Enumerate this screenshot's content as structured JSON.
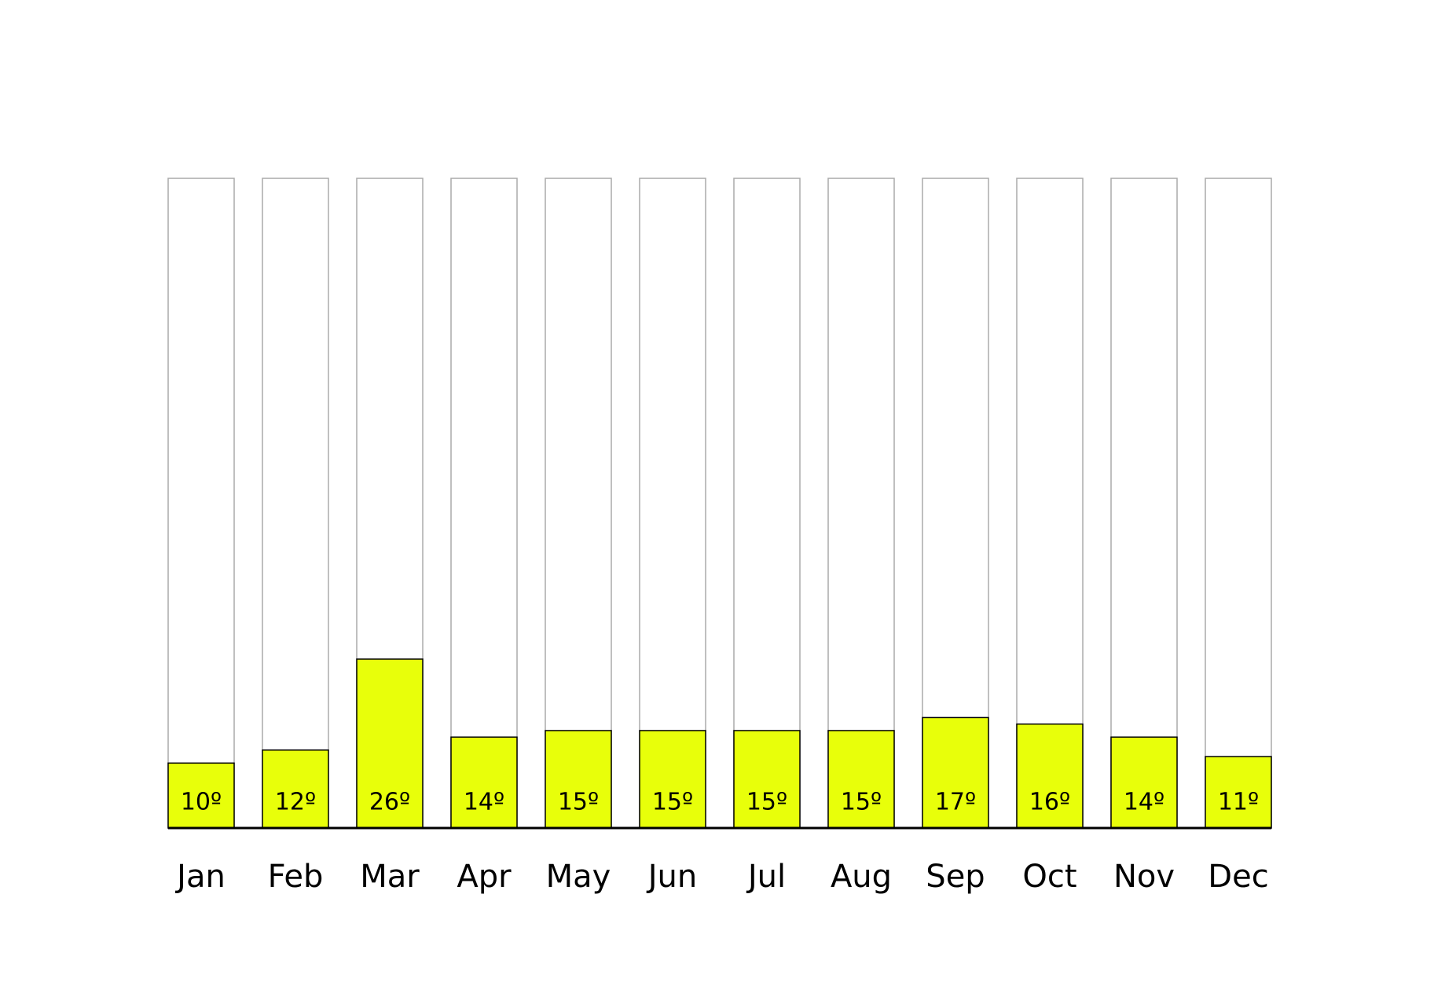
{
  "chart_data": {
    "type": "bar",
    "categories": [
      "Jan",
      "Feb",
      "Mar",
      "Apr",
      "May",
      "Jun",
      "Jul",
      "Aug",
      "Sep",
      "Oct",
      "Nov",
      "Dec"
    ],
    "values": [
      10,
      12,
      26,
      14,
      15,
      15,
      15,
      15,
      17,
      16,
      14,
      11
    ],
    "value_labels": [
      "10º",
      "12º",
      "26º",
      "14º",
      "15º",
      "15º",
      "15º",
      "15º",
      "17º",
      "16º",
      "14º",
      "11º"
    ],
    "color": "#e8ff0a",
    "ylim": [
      0,
      100
    ]
  }
}
